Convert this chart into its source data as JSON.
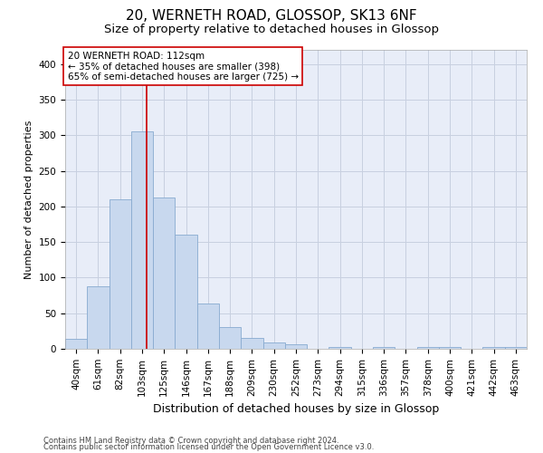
{
  "title": "20, WERNETH ROAD, GLOSSOP, SK13 6NF",
  "subtitle": "Size of property relative to detached houses in Glossop",
  "xlabel": "Distribution of detached houses by size in Glossop",
  "ylabel": "Number of detached properties",
  "footer_line1": "Contains HM Land Registry data © Crown copyright and database right 2024.",
  "footer_line2": "Contains public sector information licensed under the Open Government Licence v3.0.",
  "bar_labels": [
    "40sqm",
    "61sqm",
    "82sqm",
    "103sqm",
    "125sqm",
    "146sqm",
    "167sqm",
    "188sqm",
    "209sqm",
    "230sqm",
    "252sqm",
    "273sqm",
    "294sqm",
    "315sqm",
    "336sqm",
    "357sqm",
    "378sqm",
    "400sqm",
    "421sqm",
    "442sqm",
    "463sqm"
  ],
  "bar_values": [
    14,
    88,
    210,
    305,
    212,
    160,
    64,
    30,
    15,
    9,
    6,
    0,
    3,
    0,
    3,
    0,
    3,
    3,
    0,
    3,
    3
  ],
  "bar_color": "#c8d8ee",
  "bar_edgecolor": "#88aad0",
  "vline_index": 3.2,
  "vline_color": "#cc0000",
  "ylim": [
    0,
    420
  ],
  "yticks": [
    0,
    50,
    100,
    150,
    200,
    250,
    300,
    350,
    400
  ],
  "annotation_text": "20 WERNETH ROAD: 112sqm\n← 35% of detached houses are smaller (398)\n65% of semi-detached houses are larger (725) →",
  "annotation_box_color": "#ffffff",
  "annotation_box_edgecolor": "#cc0000",
  "background_color": "#ffffff",
  "plot_bg_color": "#e8edf8",
  "grid_color": "#c8d0e0",
  "title_fontsize": 11,
  "subtitle_fontsize": 9.5,
  "xlabel_fontsize": 9,
  "ylabel_fontsize": 8,
  "tick_fontsize": 7.5,
  "annotation_fontsize": 7.5,
  "footer_fontsize": 6
}
